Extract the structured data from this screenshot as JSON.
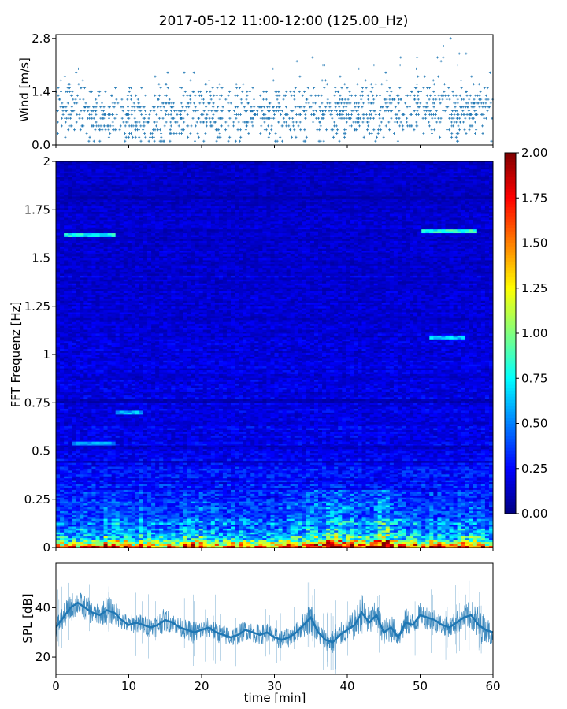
{
  "title": "2017-05-12 11:00-12:00 (125.00_Hz)",
  "chart_data": [
    {
      "type": "scatter",
      "panel": "wind",
      "ylabel": "Wind [m/s]",
      "xlim": [
        0,
        60
      ],
      "ylim": [
        0,
        2.9
      ],
      "yticks": [
        0.0,
        1.4,
        2.8
      ],
      "ytick_labels": [
        "0.0",
        "1.4",
        "2.8"
      ],
      "marker": "+",
      "color": "#1f77b4",
      "quantization_step": 0.1,
      "mean_level_profile": {
        "x": [
          0,
          3,
          6,
          9,
          12,
          15,
          18,
          21,
          24,
          27,
          30,
          33,
          36,
          39,
          42,
          45,
          48,
          51,
          54,
          57,
          60
        ],
        "y": [
          1.0,
          0.9,
          0.8,
          0.8,
          0.7,
          0.75,
          0.85,
          0.8,
          0.8,
          0.9,
          0.85,
          0.8,
          0.9,
          0.85,
          0.9,
          0.9,
          0.95,
          1.05,
          0.95,
          0.9,
          0.95
        ]
      },
      "max_level_profile": {
        "x": [
          0,
          5,
          9,
          15,
          20,
          24,
          28,
          32,
          35,
          40,
          42,
          45,
          47,
          50,
          53,
          55,
          58,
          60
        ],
        "y": [
          2.3,
          2.1,
          1.8,
          2.0,
          2.1,
          1.9,
          2.2,
          2.1,
          2.3,
          2.1,
          2.3,
          2.0,
          2.3,
          2.8,
          2.8,
          2.8,
          2.0,
          2.1
        ]
      }
    },
    {
      "type": "heatmap",
      "panel": "spectrogram",
      "ylabel": "FFT Frequenz [Hz]",
      "xlim": [
        0,
        60
      ],
      "ylim": [
        0,
        2
      ],
      "yticks": [
        0,
        0.25,
        0.5,
        0.75,
        1,
        1.25,
        1.5,
        1.75,
        2
      ],
      "ytick_labels": [
        "0",
        "0.25",
        "0.5",
        "0.75",
        "1",
        "1.25",
        "1.5",
        "1.75",
        "2"
      ],
      "colormap": "jet",
      "clim": [
        0,
        2
      ],
      "colorbar_ticks": [
        0.0,
        0.25,
        0.5,
        0.75,
        1.0,
        1.25,
        1.5,
        1.75,
        2.0
      ],
      "colorbar_tick_labels": [
        "0.00",
        "0.25",
        "0.50",
        "0.75",
        "1.00",
        "1.25",
        "1.50",
        "1.75",
        "2.00"
      ],
      "mean_profile": {
        "freq": [
          0,
          0.02,
          0.05,
          0.1,
          0.15,
          0.2,
          0.3,
          0.5,
          0.75,
          1.0,
          1.5,
          2.0
        ],
        "value": [
          1.6,
          1.1,
          0.7,
          0.55,
          0.45,
          0.38,
          0.3,
          0.24,
          0.21,
          0.19,
          0.17,
          0.15
        ]
      },
      "highlights": [
        {
          "t": [
            1,
            8
          ],
          "f": 1.62,
          "value": 0.75
        },
        {
          "t": [
            50,
            58
          ],
          "f": 1.64,
          "value": 0.8
        },
        {
          "t": [
            51,
            56
          ],
          "f": 1.09,
          "value": 0.65
        },
        {
          "t": [
            8,
            12
          ],
          "f": 0.7,
          "value": 0.6
        },
        {
          "t": [
            2,
            8
          ],
          "f": 0.54,
          "value": 0.55
        },
        {
          "t": [
            0,
            60
          ],
          "f": 0.01,
          "value": 1.8
        }
      ]
    },
    {
      "type": "line",
      "panel": "spl",
      "ylabel": "SPL [dB]",
      "xlabel": "time [min]",
      "xlim": [
        0,
        60
      ],
      "ylim": [
        13,
        58
      ],
      "yticks": [
        20,
        40
      ],
      "ytick_labels": [
        "20",
        "40"
      ],
      "xticks": [
        0,
        10,
        20,
        30,
        40,
        50,
        60
      ],
      "xtick_labels": [
        "0",
        "10",
        "20",
        "30",
        "40",
        "50",
        "60"
      ],
      "color": "#1f77b4",
      "x": [
        0,
        1,
        2,
        3,
        4,
        5,
        6,
        7,
        8,
        9,
        10,
        11,
        12,
        13,
        14,
        15,
        16,
        17,
        18,
        19,
        20,
        21,
        22,
        23,
        24,
        25,
        26,
        27,
        28,
        29,
        30,
        31,
        32,
        33,
        34,
        35,
        36,
        37,
        38,
        39,
        40,
        41,
        42,
        43,
        44,
        45,
        46,
        47,
        48,
        49,
        50,
        51,
        52,
        53,
        54,
        55,
        56,
        57,
        58,
        59,
        60
      ],
      "y": [
        32,
        36,
        40,
        42,
        40,
        38,
        37,
        39,
        38,
        35,
        33,
        34,
        33,
        32,
        33,
        35,
        34,
        32,
        31,
        30,
        31,
        32,
        30,
        29,
        28,
        29,
        31,
        30,
        29,
        30,
        28,
        27,
        28,
        30,
        33,
        36,
        30,
        27,
        26,
        29,
        31,
        33,
        38,
        34,
        37,
        30,
        32,
        28,
        34,
        33,
        37,
        36,
        35,
        33,
        32,
        34,
        36,
        37,
        33,
        31,
        30
      ],
      "envelope_halfwidth": [
        4,
        5,
        6,
        5,
        5,
        5,
        4,
        6,
        5,
        4,
        4,
        4,
        4,
        4,
        5,
        5,
        4,
        4,
        4,
        5,
        4,
        4,
        4,
        4,
        4,
        4,
        4,
        4,
        4,
        4,
        4,
        4,
        4,
        4,
        5,
        7,
        5,
        4,
        5,
        5,
        5,
        6,
        8,
        6,
        6,
        5,
        6,
        4,
        6,
        5,
        5,
        5,
        5,
        4,
        4,
        5,
        5,
        6,
        8,
        5,
        5
      ]
    }
  ]
}
